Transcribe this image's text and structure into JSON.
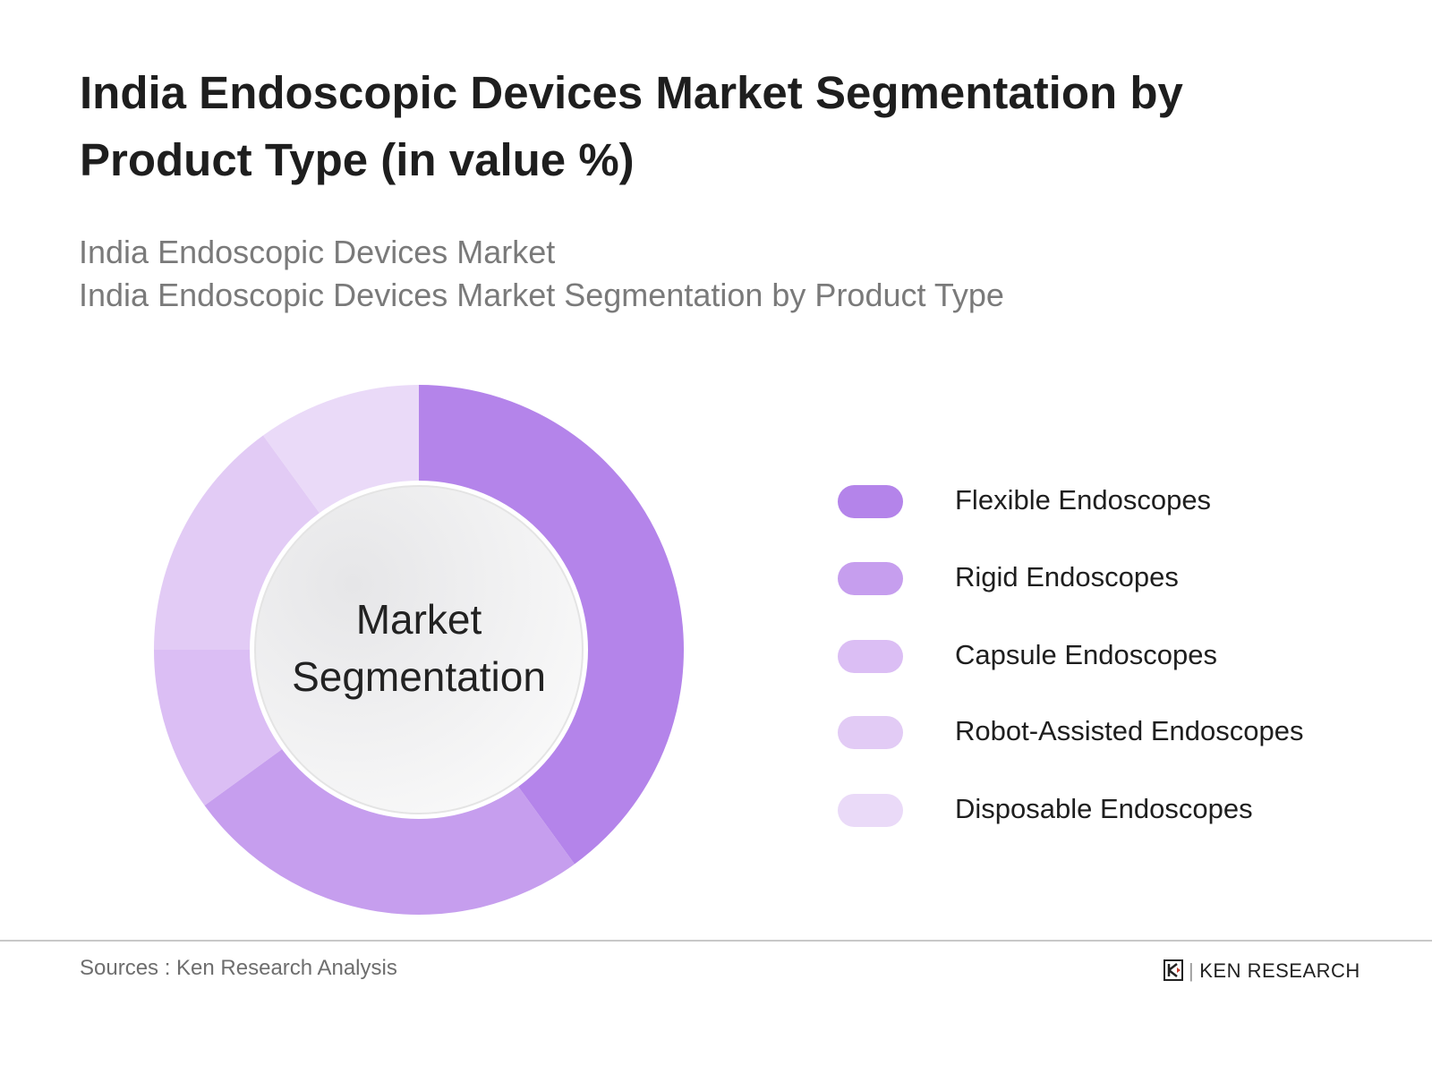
{
  "title": "India Endoscopic Devices Market Segmentation by Product Type (in value %)",
  "subtitle_lines": [
    "India Endoscopic Devices Market",
    "India Endoscopic Devices Market Segmentation by Product Type"
  ],
  "center_label": {
    "line1": "Market",
    "line2": "Segmentation"
  },
  "source": "Sources : Ken Research Analysis",
  "logo": {
    "text": "KEN RESEARCH"
  },
  "chart_data": {
    "type": "pie",
    "variant": "donut",
    "title": "India Endoscopic Devices Market Segmentation by Product Type (in value %)",
    "categories": [
      "Flexible Endoscopes",
      "Rigid Endoscopes",
      "Capsule Endoscopes",
      "Robot-Assisted Endoscopes",
      "Disposable Endoscopes"
    ],
    "values": [
      40,
      25,
      10,
      15,
      10
    ],
    "unit": "%",
    "colors": [
      "#b484ea",
      "#c69eee",
      "#dbbef4",
      "#e2cbf5",
      "#eadaf8"
    ],
    "legend_position": "right",
    "data_labels": false
  }
}
